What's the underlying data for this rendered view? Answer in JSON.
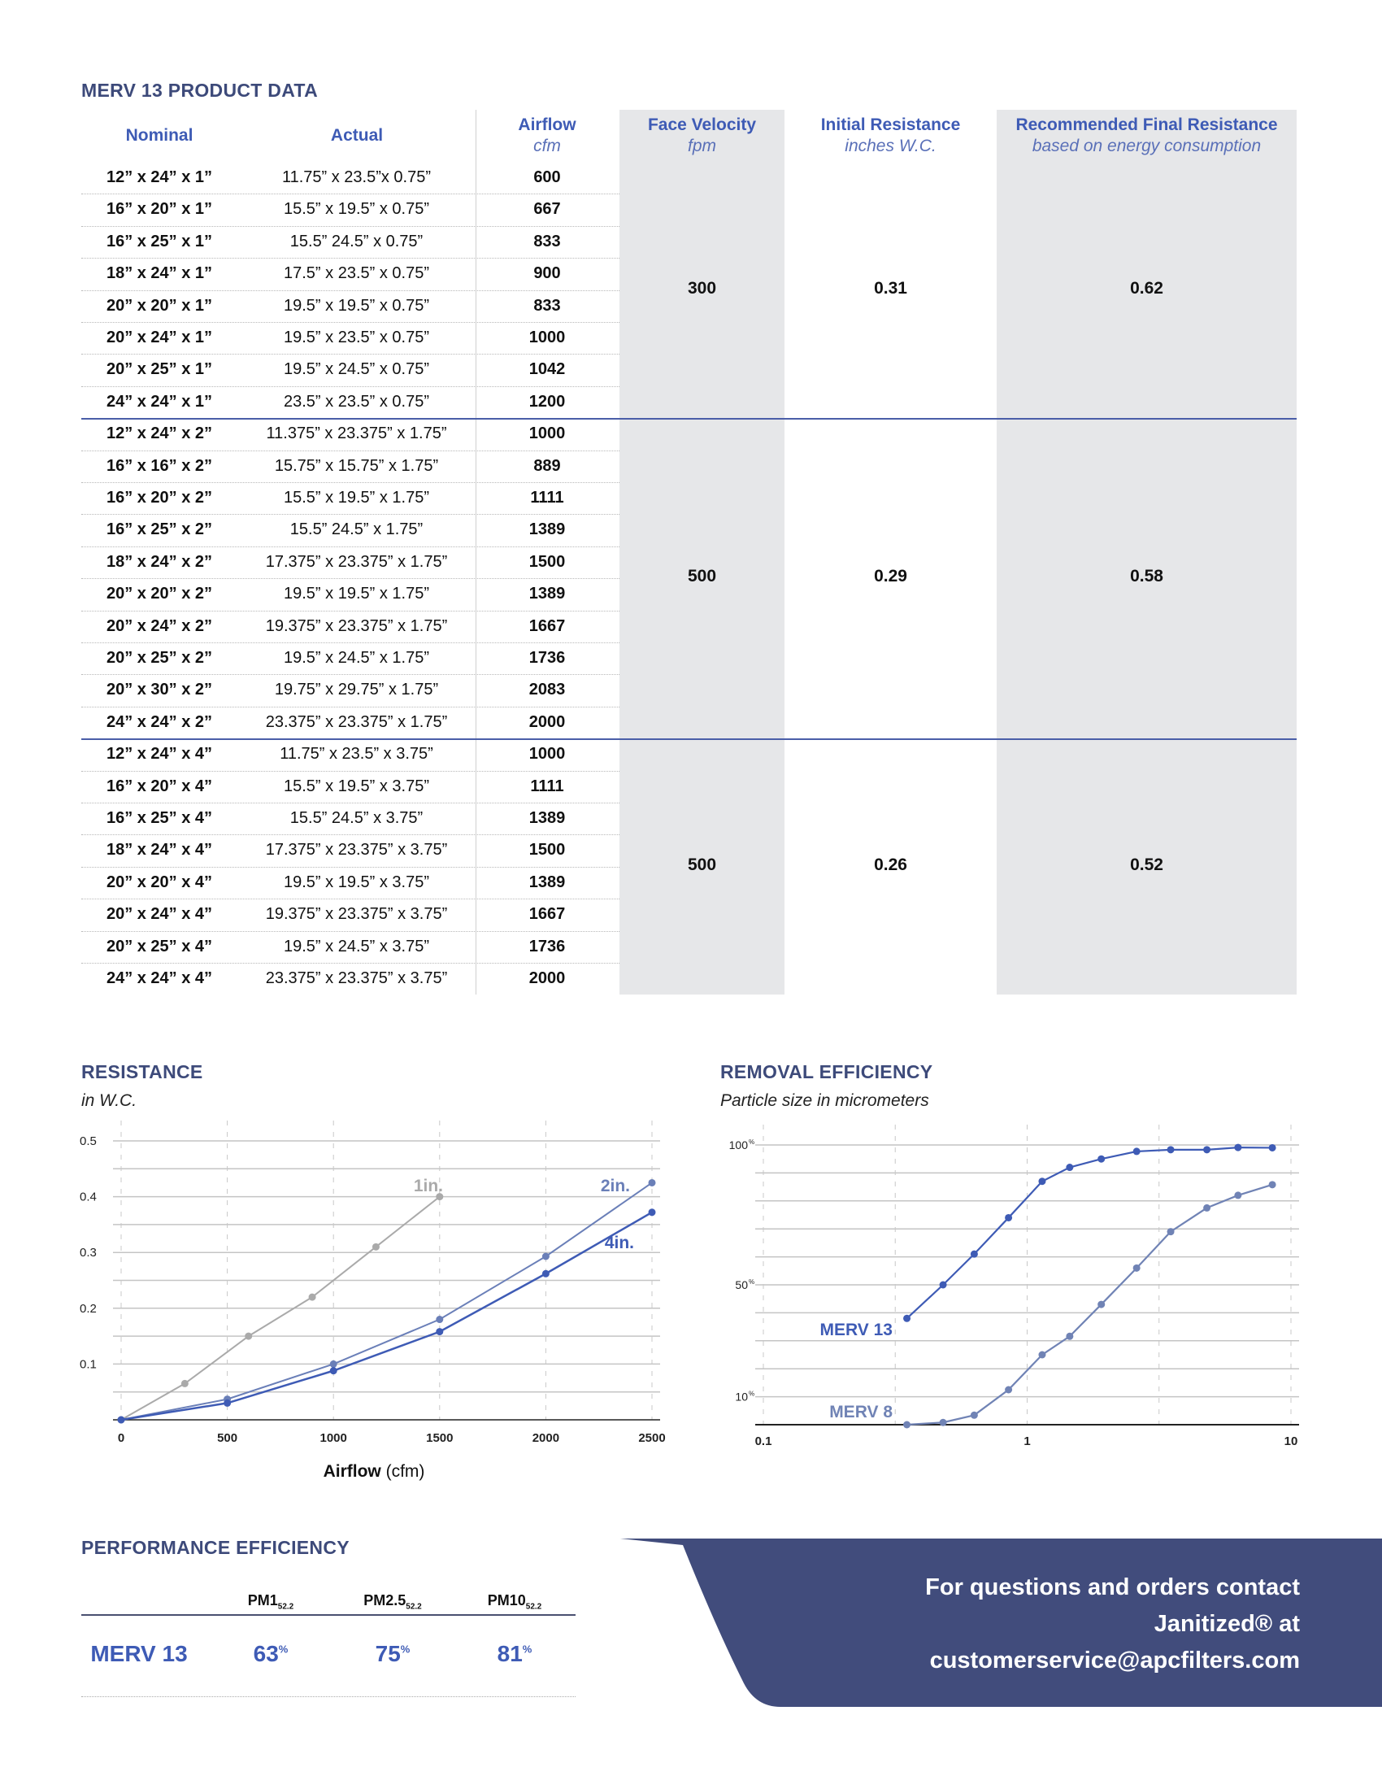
{
  "product_table": {
    "title": "MERV 13 PRODUCT DATA",
    "headers": {
      "nominal": "Nominal",
      "actual": "Actual",
      "airflow": "Airflow",
      "airflow_unit": "cfm",
      "face_velocity": "Face Velocity",
      "face_velocity_unit": "fpm",
      "initial_resistance": "Initial Resistance",
      "initial_resistance_unit": "inches W.C.",
      "final_resistance": "Recommended Final Resistance",
      "final_resistance_note": "based on energy consumption"
    },
    "groups": [
      {
        "face_velocity": "300",
        "initial_resistance": "0.31",
        "final_resistance": "0.62",
        "rows": [
          {
            "nominal": "12” x 24” x 1”",
            "actual": "11.75” x 23.5”x 0.75”",
            "airflow": "600"
          },
          {
            "nominal": "16” x 20” x 1”",
            "actual": "15.5” x 19.5” x 0.75”",
            "airflow": "667"
          },
          {
            "nominal": "16” x 25” x 1”",
            "actual": "15.5” 24.5” x 0.75”",
            "airflow": "833"
          },
          {
            "nominal": "18” x 24” x 1”",
            "actual": "17.5” x 23.5” x 0.75”",
            "airflow": "900"
          },
          {
            "nominal": "20” x 20” x 1”",
            "actual": "19.5” x 19.5” x 0.75”",
            "airflow": "833"
          },
          {
            "nominal": "20” x 24” x 1”",
            "actual": "19.5” x 23.5” x 0.75”",
            "airflow": "1000"
          },
          {
            "nominal": "20” x 25” x 1”",
            "actual": "19.5” x 24.5” x 0.75”",
            "airflow": "1042"
          },
          {
            "nominal": "24” x 24” x 1”",
            "actual": "23.5” x 23.5” x 0.75”",
            "airflow": "1200"
          }
        ]
      },
      {
        "face_velocity": "500",
        "initial_resistance": "0.29",
        "final_resistance": "0.58",
        "rows": [
          {
            "nominal": "12” x 24” x 2”",
            "actual": "11.375” x 23.375” x 1.75”",
            "airflow": "1000"
          },
          {
            "nominal": "16” x 16” x 2”",
            "actual": "15.75” x 15.75” x 1.75”",
            "airflow": "889"
          },
          {
            "nominal": "16” x 20” x 2”",
            "actual": "15.5” x 19.5” x 1.75”",
            "airflow": "1111"
          },
          {
            "nominal": "16” x 25” x 2”",
            "actual": "15.5” 24.5” x 1.75”",
            "airflow": "1389"
          },
          {
            "nominal": "18” x 24” x 2”",
            "actual": "17.375” x 23.375” x 1.75”",
            "airflow": "1500"
          },
          {
            "nominal": "20” x 20” x 2”",
            "actual": "19.5” x 19.5” x 1.75”",
            "airflow": "1389"
          },
          {
            "nominal": "20” x 24” x 2”",
            "actual": "19.375” x 23.375” x 1.75”",
            "airflow": "1667"
          },
          {
            "nominal": "20” x 25” x 2”",
            "actual": "19.5” x 24.5” x 1.75”",
            "airflow": "1736"
          },
          {
            "nominal": "20” x 30” x 2”",
            "actual": "19.75” x 29.75” x 1.75”",
            "airflow": "2083"
          },
          {
            "nominal": "24” x 24” x 2”",
            "actual": "23.375” x 23.375” x 1.75”",
            "airflow": "2000"
          }
        ]
      },
      {
        "face_velocity": "500",
        "initial_resistance": "0.26",
        "final_resistance": "0.52",
        "rows": [
          {
            "nominal": "12” x 24” x 4”",
            "actual": "11.75” x 23.5” x 3.75”",
            "airflow": "1000"
          },
          {
            "nominal": "16” x 20” x 4”",
            "actual": "15.5” x 19.5” x 3.75”",
            "airflow": "1111"
          },
          {
            "nominal": "16” x 25” x 4”",
            "actual": "15.5” 24.5” x 3.75”",
            "airflow": "1389"
          },
          {
            "nominal": "18” x 24” x 4”",
            "actual": "17.375” x 23.375” x 3.75”",
            "airflow": "1500"
          },
          {
            "nominal": "20” x 20” x 4”",
            "actual": "19.5” x 19.5” x 3.75”",
            "airflow": "1389"
          },
          {
            "nominal": "20” x 24” x 4”",
            "actual": "19.375” x 23.375” x 3.75”",
            "airflow": "1667"
          },
          {
            "nominal": "20” x 25” x 4”",
            "actual": "19.5” x 24.5” x 3.75”",
            "airflow": "1736"
          },
          {
            "nominal": "24” x 24” x 4”",
            "actual": "23.375” x 23.375” x 3.75”",
            "airflow": "2000"
          }
        ]
      }
    ]
  },
  "chart_data": [
    {
      "type": "line",
      "title": "RESISTANCE",
      "subtitle": "in W.C.",
      "xlabel": "Airflow",
      "xlabel_unit": "(cfm)",
      "xlim": [
        0,
        2500
      ],
      "ylim": [
        0,
        0.5
      ],
      "xticks": [
        "0",
        "500",
        "1000",
        "1500",
        "2000",
        "2500"
      ],
      "yticks": [
        "0.1",
        "0.2",
        "0.3",
        "0.4",
        "0.5"
      ],
      "grid": true,
      "series": [
        {
          "name": "1in.",
          "color": "#aaaaaa",
          "x": [
            0,
            300,
            600,
            900,
            1200,
            1500
          ],
          "y": [
            0,
            0.065,
            0.15,
            0.22,
            0.31,
            0.4
          ]
        },
        {
          "name": "2in.",
          "color": "#6a7fb8",
          "x": [
            0,
            500,
            1000,
            1500,
            2000,
            2500
          ],
          "y": [
            0,
            0.037,
            0.1,
            0.18,
            0.293,
            0.425
          ]
        },
        {
          "name": "4in.",
          "color": "#3e5bb5",
          "x": [
            0,
            500,
            1000,
            1500,
            2000,
            2500
          ],
          "y": [
            0,
            0.03,
            0.088,
            0.158,
            0.262,
            0.372
          ]
        }
      ]
    },
    {
      "type": "line",
      "title": "REMOVAL EFFICIENCY",
      "subtitle": "Particle size in micrometers",
      "xscale": "log",
      "xlim": [
        0.1,
        10
      ],
      "ylim": [
        0,
        100
      ],
      "xticks": [
        "0.1",
        "1",
        "10"
      ],
      "yticks": [
        {
          "value": 100,
          "label": "100"
        },
        {
          "value": 50,
          "label": "50"
        },
        {
          "value": 10,
          "label": "10"
        }
      ],
      "ytick_suffix": "%",
      "grid": true,
      "series": [
        {
          "name": "MERV 13",
          "color": "#3e5bb5",
          "x": [
            0.35,
            0.48,
            0.63,
            0.85,
            1.14,
            1.45,
            1.91,
            2.6,
            3.5,
            4.8,
            6.3,
            8.5
          ],
          "y": [
            38,
            50,
            61,
            74,
            87,
            92,
            95,
            97.7,
            98.3,
            98.3,
            99.1,
            99
          ]
        },
        {
          "name": "MERV 8",
          "color": "#7083b5",
          "x": [
            0.35,
            0.48,
            0.63,
            0.85,
            1.14,
            1.45,
            1.91,
            2.6,
            3.5,
            4.8,
            6.3,
            8.5
          ],
          "y": [
            0,
            0.8,
            3.4,
            12.5,
            25,
            31.6,
            43,
            56,
            69,
            77.5,
            82,
            85.8
          ]
        }
      ]
    }
  ],
  "performance": {
    "title": "PERFORMANCE EFFICIENCY",
    "columns": [
      {
        "label": "PM1",
        "sub": "52.2"
      },
      {
        "label": "PM2.5",
        "sub": "52.2"
      },
      {
        "label": "PM10",
        "sub": "52.2"
      }
    ],
    "row_label": "MERV 13",
    "values": [
      "63",
      "75",
      "81"
    ],
    "unit": "%"
  },
  "contact": {
    "line1": "For questions and orders contact",
    "line2": "Janitized® at",
    "line3": "customerservice@apcfilters.com"
  },
  "colors": {
    "navy": "#3d4a7a",
    "accent": "#3e5bb5",
    "banner": "#414c7c",
    "shade": "#e6e7e9"
  }
}
